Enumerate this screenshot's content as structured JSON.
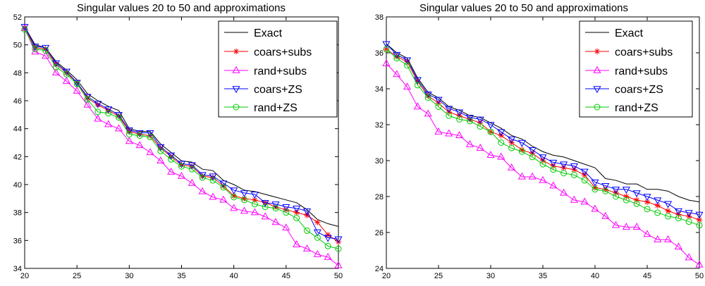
{
  "chart_data": [
    {
      "type": "line",
      "title": "Singular values 20 to 50 and approximations",
      "xlabel": "",
      "ylabel": "",
      "xlim": [
        20,
        50
      ],
      "ylim": [
        34,
        52
      ],
      "xticks": [
        20,
        25,
        30,
        35,
        40,
        45,
        50
      ],
      "yticks": [
        34,
        36,
        38,
        40,
        42,
        44,
        46,
        48,
        50,
        52
      ],
      "legend_position": "top-right",
      "x": [
        20,
        21,
        22,
        23,
        24,
        25,
        26,
        27,
        28,
        29,
        30,
        31,
        32,
        33,
        34,
        35,
        36,
        37,
        38,
        39,
        40,
        41,
        42,
        43,
        44,
        45,
        46,
        47,
        48,
        49,
        50
      ],
      "series": [
        {
          "name": "Exact",
          "color": "#000000",
          "marker": "none",
          "values": [
            51.3,
            50.0,
            49.8,
            48.8,
            48.2,
            47.5,
            46.5,
            46.0,
            45.6,
            45.3,
            44.0,
            43.8,
            43.8,
            42.9,
            42.3,
            41.7,
            41.6,
            41.1,
            41.0,
            40.3,
            40.0,
            39.6,
            39.5,
            39.3,
            39.1,
            38.9,
            38.7,
            38.2,
            37.5,
            37.2,
            37.0
          ]
        },
        {
          "name": "coars+subs",
          "color": "#ff0000",
          "marker": "star",
          "values": [
            51.2,
            49.8,
            49.7,
            48.6,
            48.0,
            47.3,
            46.2,
            45.7,
            45.3,
            44.9,
            43.8,
            43.6,
            43.5,
            42.6,
            42.0,
            41.4,
            41.3,
            40.6,
            40.5,
            39.9,
            39.2,
            39.0,
            38.9,
            38.7,
            38.4,
            38.2,
            38.0,
            37.8,
            37.3,
            36.4,
            35.9
          ]
        },
        {
          "name": "rand+subs",
          "color": "#ff00ff",
          "marker": "triangle-up",
          "values": [
            51.2,
            49.5,
            49.2,
            48.0,
            47.4,
            46.7,
            45.7,
            44.7,
            44.3,
            44.0,
            43.1,
            42.8,
            42.3,
            41.7,
            40.9,
            40.6,
            40.1,
            39.5,
            39.1,
            38.9,
            38.3,
            38.1,
            38.0,
            37.7,
            37.3,
            36.9,
            35.7,
            35.4,
            35.0,
            34.8,
            34.2
          ]
        },
        {
          "name": "coars+ZS",
          "color": "#0000ff",
          "marker": "triangle-down",
          "values": [
            51.3,
            49.9,
            49.8,
            48.7,
            48.1,
            47.3,
            46.3,
            45.8,
            45.4,
            45.0,
            43.9,
            43.7,
            43.7,
            42.7,
            42.1,
            41.5,
            41.4,
            40.7,
            40.6,
            40.1,
            39.6,
            39.4,
            39.3,
            38.7,
            38.6,
            38.4,
            38.3,
            38.1,
            36.6,
            36.2,
            36.1
          ]
        },
        {
          "name": "rand+ZS",
          "color": "#00cc00",
          "marker": "circle",
          "values": [
            51.1,
            49.7,
            49.6,
            48.4,
            47.9,
            47.2,
            46.1,
            45.2,
            45.1,
            44.8,
            43.6,
            43.5,
            43.4,
            42.4,
            41.8,
            41.3,
            41.1,
            40.5,
            40.3,
            39.8,
            39.1,
            38.9,
            38.6,
            38.4,
            38.3,
            38.0,
            37.6,
            36.7,
            36.2,
            35.6,
            35.4
          ]
        }
      ]
    },
    {
      "type": "line",
      "title": "Singular values 20 to 50 and approximations",
      "xlabel": "",
      "ylabel": "",
      "xlim": [
        20,
        50
      ],
      "ylim": [
        24,
        38
      ],
      "xticks": [
        20,
        25,
        30,
        35,
        40,
        45,
        50
      ],
      "yticks": [
        24,
        26,
        28,
        30,
        32,
        34,
        36,
        38
      ],
      "legend_position": "top-right",
      "x": [
        20,
        21,
        22,
        23,
        24,
        25,
        26,
        27,
        28,
        29,
        30,
        31,
        32,
        33,
        34,
        35,
        36,
        37,
        38,
        39,
        40,
        41,
        42,
        43,
        44,
        45,
        46,
        47,
        48,
        49,
        50
      ],
      "series": [
        {
          "name": "Exact",
          "color": "#000000",
          "marker": "none",
          "values": [
            36.5,
            36.0,
            35.7,
            34.6,
            33.8,
            33.5,
            33.0,
            32.8,
            32.5,
            32.4,
            32.1,
            31.8,
            31.4,
            31.2,
            30.8,
            30.5,
            30.3,
            30.2,
            30.0,
            29.8,
            29.6,
            29.0,
            28.9,
            28.7,
            28.7,
            28.4,
            28.4,
            28.3,
            28.0,
            27.8,
            27.7
          ]
        },
        {
          "name": "coars+subs",
          "color": "#ff0000",
          "marker": "star",
          "values": [
            36.2,
            35.8,
            35.5,
            34.4,
            33.6,
            33.2,
            32.7,
            32.5,
            32.3,
            32.1,
            31.6,
            31.4,
            31.0,
            30.6,
            30.4,
            30.0,
            29.7,
            29.6,
            29.5,
            29.2,
            28.5,
            28.4,
            28.2,
            28.0,
            27.8,
            27.7,
            27.5,
            27.2,
            27.0,
            26.9,
            26.7
          ]
        },
        {
          "name": "rand+subs",
          "color": "#ff00ff",
          "marker": "triangle-up",
          "values": [
            35.4,
            34.8,
            34.1,
            33.0,
            32.6,
            31.6,
            31.5,
            31.4,
            30.9,
            30.7,
            30.3,
            30.2,
            29.6,
            29.1,
            29.1,
            28.9,
            28.6,
            28.2,
            27.8,
            27.7,
            27.3,
            26.9,
            26.4,
            26.3,
            26.3,
            25.9,
            25.6,
            25.6,
            25.2,
            24.6,
            24.2
          ]
        },
        {
          "name": "coars+ZS",
          "color": "#0000ff",
          "marker": "triangle-down",
          "values": [
            36.5,
            35.9,
            35.6,
            34.5,
            33.7,
            33.4,
            32.9,
            32.7,
            32.4,
            32.3,
            32.0,
            31.6,
            31.2,
            31.0,
            30.6,
            30.2,
            29.9,
            29.8,
            29.7,
            29.4,
            28.8,
            28.6,
            28.4,
            28.4,
            28.2,
            28.0,
            27.8,
            27.6,
            27.2,
            27.1,
            27.0
          ]
        },
        {
          "name": "rand+ZS",
          "color": "#00cc00",
          "marker": "circle",
          "values": [
            36.2,
            35.7,
            35.3,
            34.2,
            33.5,
            33.0,
            32.5,
            32.3,
            32.2,
            31.9,
            31.6,
            31.0,
            30.7,
            30.5,
            30.2,
            29.8,
            29.5,
            29.3,
            29.2,
            28.9,
            28.4,
            28.3,
            28.0,
            27.8,
            27.6,
            27.3,
            27.1,
            26.9,
            26.8,
            26.6,
            26.4
          ]
        }
      ]
    }
  ]
}
